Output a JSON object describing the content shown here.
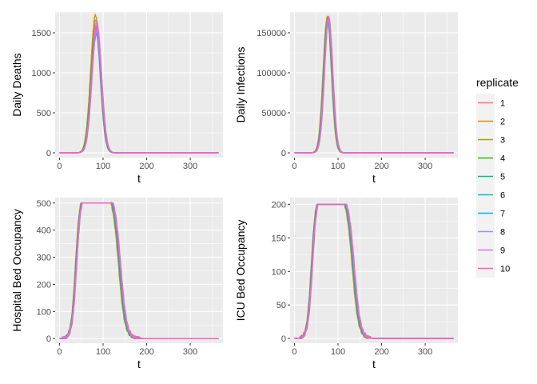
{
  "legend": {
    "title": "replicate",
    "entries": [
      {
        "label": "1",
        "color": "#F8766D"
      },
      {
        "label": "2",
        "color": "#D89000"
      },
      {
        "label": "3",
        "color": "#A3A500"
      },
      {
        "label": "4",
        "color": "#39B600"
      },
      {
        "label": "5",
        "color": "#00BF7D"
      },
      {
        "label": "6",
        "color": "#00BFC4"
      },
      {
        "label": "7",
        "color": "#00B0F6"
      },
      {
        "label": "8",
        "color": "#9590FF"
      },
      {
        "label": "9",
        "color": "#E76BF3"
      },
      {
        "label": "10",
        "color": "#FF62BC"
      }
    ]
  },
  "chart_data": [
    {
      "type": "line",
      "xlabel": "t",
      "ylabel": "Daily Deaths",
      "xlim": [
        -10,
        375
      ],
      "ylim": [
        -60,
        1760
      ],
      "xticks": [
        0,
        100,
        200,
        300
      ],
      "yticks": [
        0,
        500,
        1000,
        1500
      ],
      "shape": "peak",
      "shape_params": {
        "center": 84,
        "width": 11
      },
      "peaks": [
        1600,
        1720,
        1660,
        1580,
        1550,
        1500,
        1480,
        1520,
        1640,
        1560
      ]
    },
    {
      "type": "line",
      "xlabel": "t",
      "ylabel": "Daily Infections",
      "xlim": [
        -10,
        375
      ],
      "ylim": [
        -6000,
        176000
      ],
      "xticks": [
        0,
        100,
        200,
        300
      ],
      "yticks": [
        0,
        50000,
        100000,
        150000
      ],
      "shape": "peak",
      "shape_params": {
        "center": 77,
        "width": 9.5
      },
      "peaks": [
        168000,
        170000,
        169000,
        166000,
        167000,
        165000,
        164000,
        166000,
        170000,
        168000
      ]
    },
    {
      "type": "line",
      "xlabel": "t",
      "ylabel": "Hospital Bed Occupancy",
      "xlim": [
        -10,
        375
      ],
      "ylim": [
        -17,
        520
      ],
      "xticks": [
        0,
        100,
        200,
        300
      ],
      "yticks": [
        0,
        100,
        200,
        300,
        400,
        500
      ],
      "shape": "plateau",
      "capacity": 500,
      "shape_params": {
        "rise_center": 38,
        "rise_width": 5,
        "fall_center": 138,
        "fall_width": 7
      }
    },
    {
      "type": "line",
      "xlabel": "t",
      "ylabel": "ICU Bed Occupancy",
      "xlim": [
        -10,
        375
      ],
      "ylim": [
        -7,
        210
      ],
      "xticks": [
        0,
        100,
        200,
        300
      ],
      "yticks": [
        0,
        50,
        100,
        150,
        200
      ],
      "shape": "plateau",
      "capacity": 200,
      "shape_params": {
        "rise_center": 40,
        "rise_width": 5,
        "fall_center": 135,
        "fall_width": 7
      }
    }
  ]
}
